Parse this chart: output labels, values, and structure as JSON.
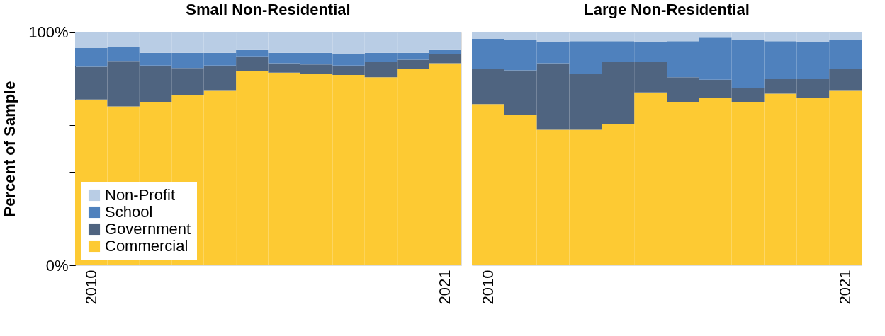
{
  "chart_data": [
    {
      "type": "bar",
      "title": "Small Non-Residential",
      "ylabel": "Percent of  Sample",
      "stacked": true,
      "categories": [
        "2010",
        null,
        null,
        null,
        null,
        null,
        null,
        null,
        null,
        null,
        null,
        "2021"
      ],
      "series": [
        {
          "name": "Commercial",
          "color": "#fdca33",
          "values": [
            71,
            68,
            70,
            73,
            75,
            83,
            82.5,
            82,
            81.5,
            80.5,
            84,
            86.5
          ]
        },
        {
          "name": "Government",
          "color": "#4f6480",
          "values": [
            14,
            19.5,
            15.5,
            11.5,
            10.5,
            6.5,
            4,
            4,
            4,
            6.5,
            4,
            4
          ]
        },
        {
          "name": "School",
          "color": "#4f81bd",
          "values": [
            8,
            6,
            5.5,
            6.5,
            5.5,
            3,
            4.5,
            5,
            5,
            4,
            3,
            2
          ]
        },
        {
          "name": "Non-Profit",
          "color": "#b9cde5",
          "values": [
            7,
            6.5,
            9,
            9,
            9,
            7.5,
            9,
            9,
            9.5,
            9,
            9,
            7.5
          ]
        }
      ],
      "ylim": [
        0,
        100
      ],
      "yticks": [
        {
          "value": 0,
          "label": "0%"
        },
        {
          "value": 20,
          "label": null
        },
        {
          "value": 40,
          "label": null
        },
        {
          "value": 60,
          "label": null
        },
        {
          "value": 80,
          "label": null
        },
        {
          "value": 100,
          "label": "100%"
        }
      ],
      "legend": "bottom left",
      "grid": false
    },
    {
      "type": "bar",
      "title": "Large Non-Residential",
      "stacked": true,
      "categories": [
        "2010",
        null,
        null,
        null,
        null,
        null,
        null,
        null,
        null,
        null,
        null,
        "2021"
      ],
      "series": [
        {
          "color": "#fdca33",
          "values": [
            69,
            64.5,
            58,
            58,
            60.5,
            74,
            70,
            71.5,
            70,
            73.5,
            71.5,
            75
          ]
        },
        {
          "color": "#4f6480",
          "values": [
            15,
            19,
            28.5,
            24,
            26.5,
            13,
            10.5,
            8,
            6,
            6.5,
            8.5,
            9
          ]
        },
        {
          "color": "#4f81bd",
          "values": [
            13,
            13,
            9,
            14,
            9,
            8.5,
            15.5,
            18,
            20.5,
            16,
            15.5,
            12.5
          ]
        },
        {
          "color": "#b9cde5",
          "values": [
            3,
            3.5,
            4.5,
            4,
            4,
            4.5,
            4,
            2.5,
            3.5,
            4,
            4.5,
            3.5
          ]
        }
      ],
      "ylim": [
        0,
        100
      ],
      "tick_labels": "x",
      "legend": false,
      "grid": false
    }
  ]
}
